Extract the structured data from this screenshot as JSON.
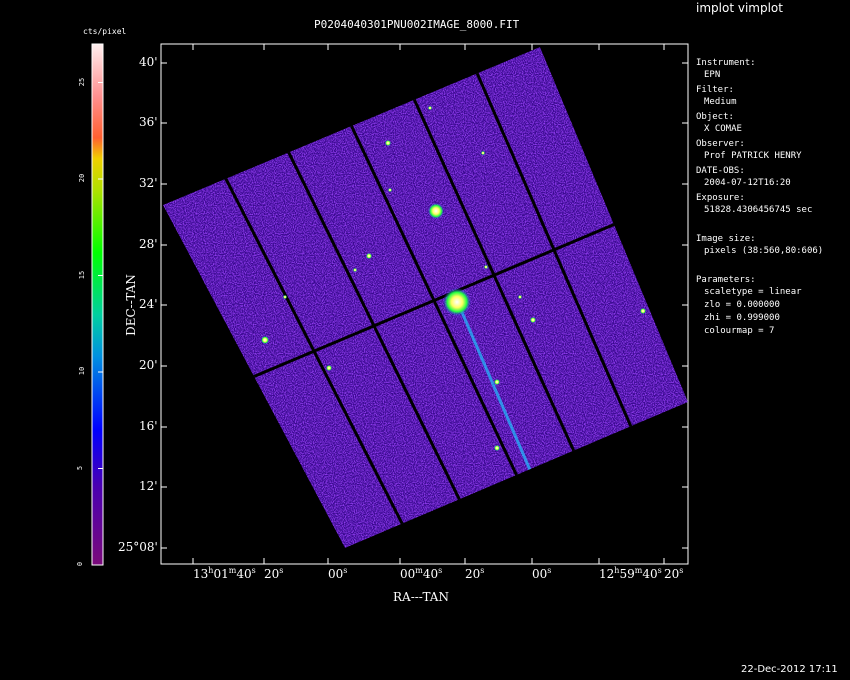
{
  "app_title": "implot vimplot",
  "plot_title": "P0204040301PNU002IMAGE_8000.FIT",
  "timestamp": "22-Dec-2012 17:11",
  "colorbar": {
    "label": "cts/pixel",
    "ticks": [
      "0",
      "5",
      "10",
      "15",
      "20",
      "25"
    ],
    "colormap": "rainbow"
  },
  "axes": {
    "xlabel": "RA---TAN",
    "ylabel": "DEC--TAN",
    "xticks": [
      {
        "main": "13",
        "h": "h",
        "m": "01",
        "mu": "m",
        "s": "40",
        "su": "s"
      },
      {
        "s": "20",
        "su": "s"
      },
      {
        "s": "00",
        "su": "s"
      },
      {
        "m": "00",
        "mu": "m",
        "s": "40",
        "su": "s"
      },
      {
        "s": "20",
        "su": "s"
      },
      {
        "s": "00",
        "su": "s"
      },
      {
        "main": "12",
        "h": "h",
        "m": "59",
        "mu": "m",
        "s": "40",
        "su": "s"
      },
      {
        "s": "20",
        "su": "s"
      }
    ],
    "yticks": [
      "40'",
      "36'",
      "32'",
      "28'",
      "24'",
      "20'",
      "16'",
      "12'",
      "25°08'"
    ]
  },
  "info": [
    {
      "label": "Instrument:",
      "value": "EPN"
    },
    {
      "label": "Filter:",
      "value": "Medium"
    },
    {
      "label": "Object:",
      "value": "X COMAE"
    },
    {
      "label": "Observer:",
      "value": "Prof PATRICK HENRY"
    },
    {
      "label": "DATE-OBS:",
      "value": "2004-07-12T16:20"
    },
    {
      "label": "Exposure:",
      "value": "51828.4306456745 sec"
    },
    {
      "label": "Image size:",
      "value": "pixels (38:560,80:606)"
    },
    {
      "label": "Parameters:",
      "value": "scaletype = linear"
    },
    {
      "label": "",
      "value": "zlo = 0.000000"
    },
    {
      "label": "",
      "value": "zhi = 0.999000"
    },
    {
      "label": "",
      "value": "colourmap =   7"
    }
  ]
}
